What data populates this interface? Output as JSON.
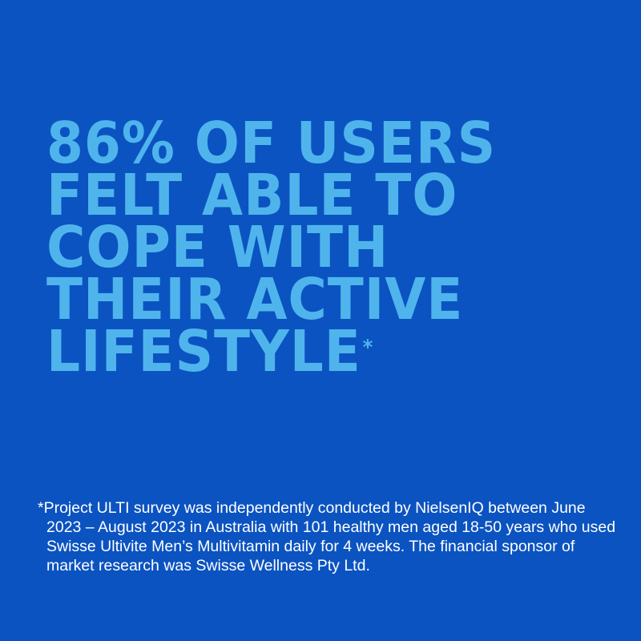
{
  "headline": {
    "lines": [
      "86% OF USERS",
      "FELT ABLE TO",
      "COPE WITH",
      "THEIR ACTIVE",
      "LIFESTYLE"
    ],
    "footnote_marker": "*"
  },
  "footnote": {
    "text": "*Project ULTI survey was independently conducted by NielsenIQ between June 2023 – August 2023 in Australia with 101 healthy men aged 18-50 years who used Swisse Ultivite Men’s Multivitamin daily for 4 weeks. The financial sponsor of market research was Swisse Wellness Pty Ltd."
  },
  "colors": {
    "background": "#0b53c1",
    "headline": "#4fb4ec",
    "footnote": "#ffffff"
  }
}
